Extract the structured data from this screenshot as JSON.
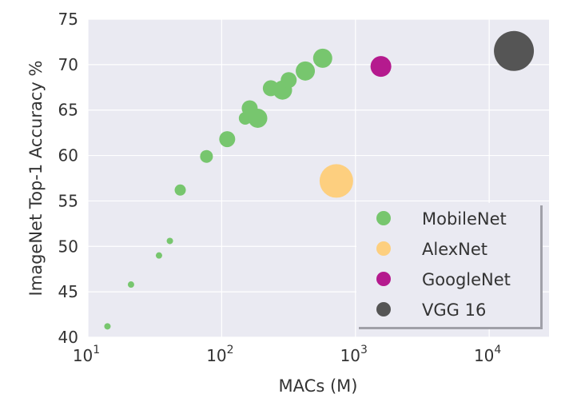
{
  "chart_data": {
    "type": "scatter",
    "xlabel": "MACs (M)",
    "ylabel": "ImageNet Top-1 Accuracy %",
    "x_scale": "log",
    "xlim": [
      10,
      28000
    ],
    "ylim": [
      40,
      75
    ],
    "x_ticks": [
      {
        "value": 10,
        "base": "10",
        "exp": "1"
      },
      {
        "value": 100,
        "base": "10",
        "exp": "2"
      },
      {
        "value": 1000,
        "base": "10",
        "exp": "3"
      },
      {
        "value": 10000,
        "base": "10",
        "exp": "4"
      }
    ],
    "y_ticks": [
      "40",
      "45",
      "50",
      "55",
      "60",
      "65",
      "70",
      "75"
    ],
    "grid": true,
    "legend_position": "lower-right",
    "series": [
      {
        "name": "MobileNet",
        "color": "#77c66e",
        "points": [
          {
            "x": 14,
            "y": 41.2,
            "size": 4
          },
          {
            "x": 21,
            "y": 45.8,
            "size": 4
          },
          {
            "x": 34,
            "y": 49.0,
            "size": 4
          },
          {
            "x": 41,
            "y": 50.6,
            "size": 4
          },
          {
            "x": 49,
            "y": 56.2,
            "size": 7
          },
          {
            "x": 77,
            "y": 59.9,
            "size": 8
          },
          {
            "x": 110,
            "y": 61.8,
            "size": 10
          },
          {
            "x": 150,
            "y": 64.1,
            "size": 8
          },
          {
            "x": 162,
            "y": 65.2,
            "size": 10
          },
          {
            "x": 186,
            "y": 64.1,
            "size": 12
          },
          {
            "x": 233,
            "y": 67.4,
            "size": 10
          },
          {
            "x": 285,
            "y": 67.2,
            "size": 12
          },
          {
            "x": 317,
            "y": 68.3,
            "size": 10
          },
          {
            "x": 422,
            "y": 69.3,
            "size": 12
          },
          {
            "x": 569,
            "y": 70.7,
            "size": 12
          }
        ]
      },
      {
        "name": "AlexNet",
        "color": "#fdcf7f",
        "points": [
          {
            "x": 720,
            "y": 57.2,
            "size": 21
          }
        ]
      },
      {
        "name": "GoogleNet",
        "color": "#b51a8e",
        "points": [
          {
            "x": 1550,
            "y": 69.8,
            "size": 13
          }
        ]
      },
      {
        "name": "VGG 16",
        "color": "#555555",
        "points": [
          {
            "x": 15300,
            "y": 71.5,
            "size": 25
          }
        ]
      }
    ]
  }
}
